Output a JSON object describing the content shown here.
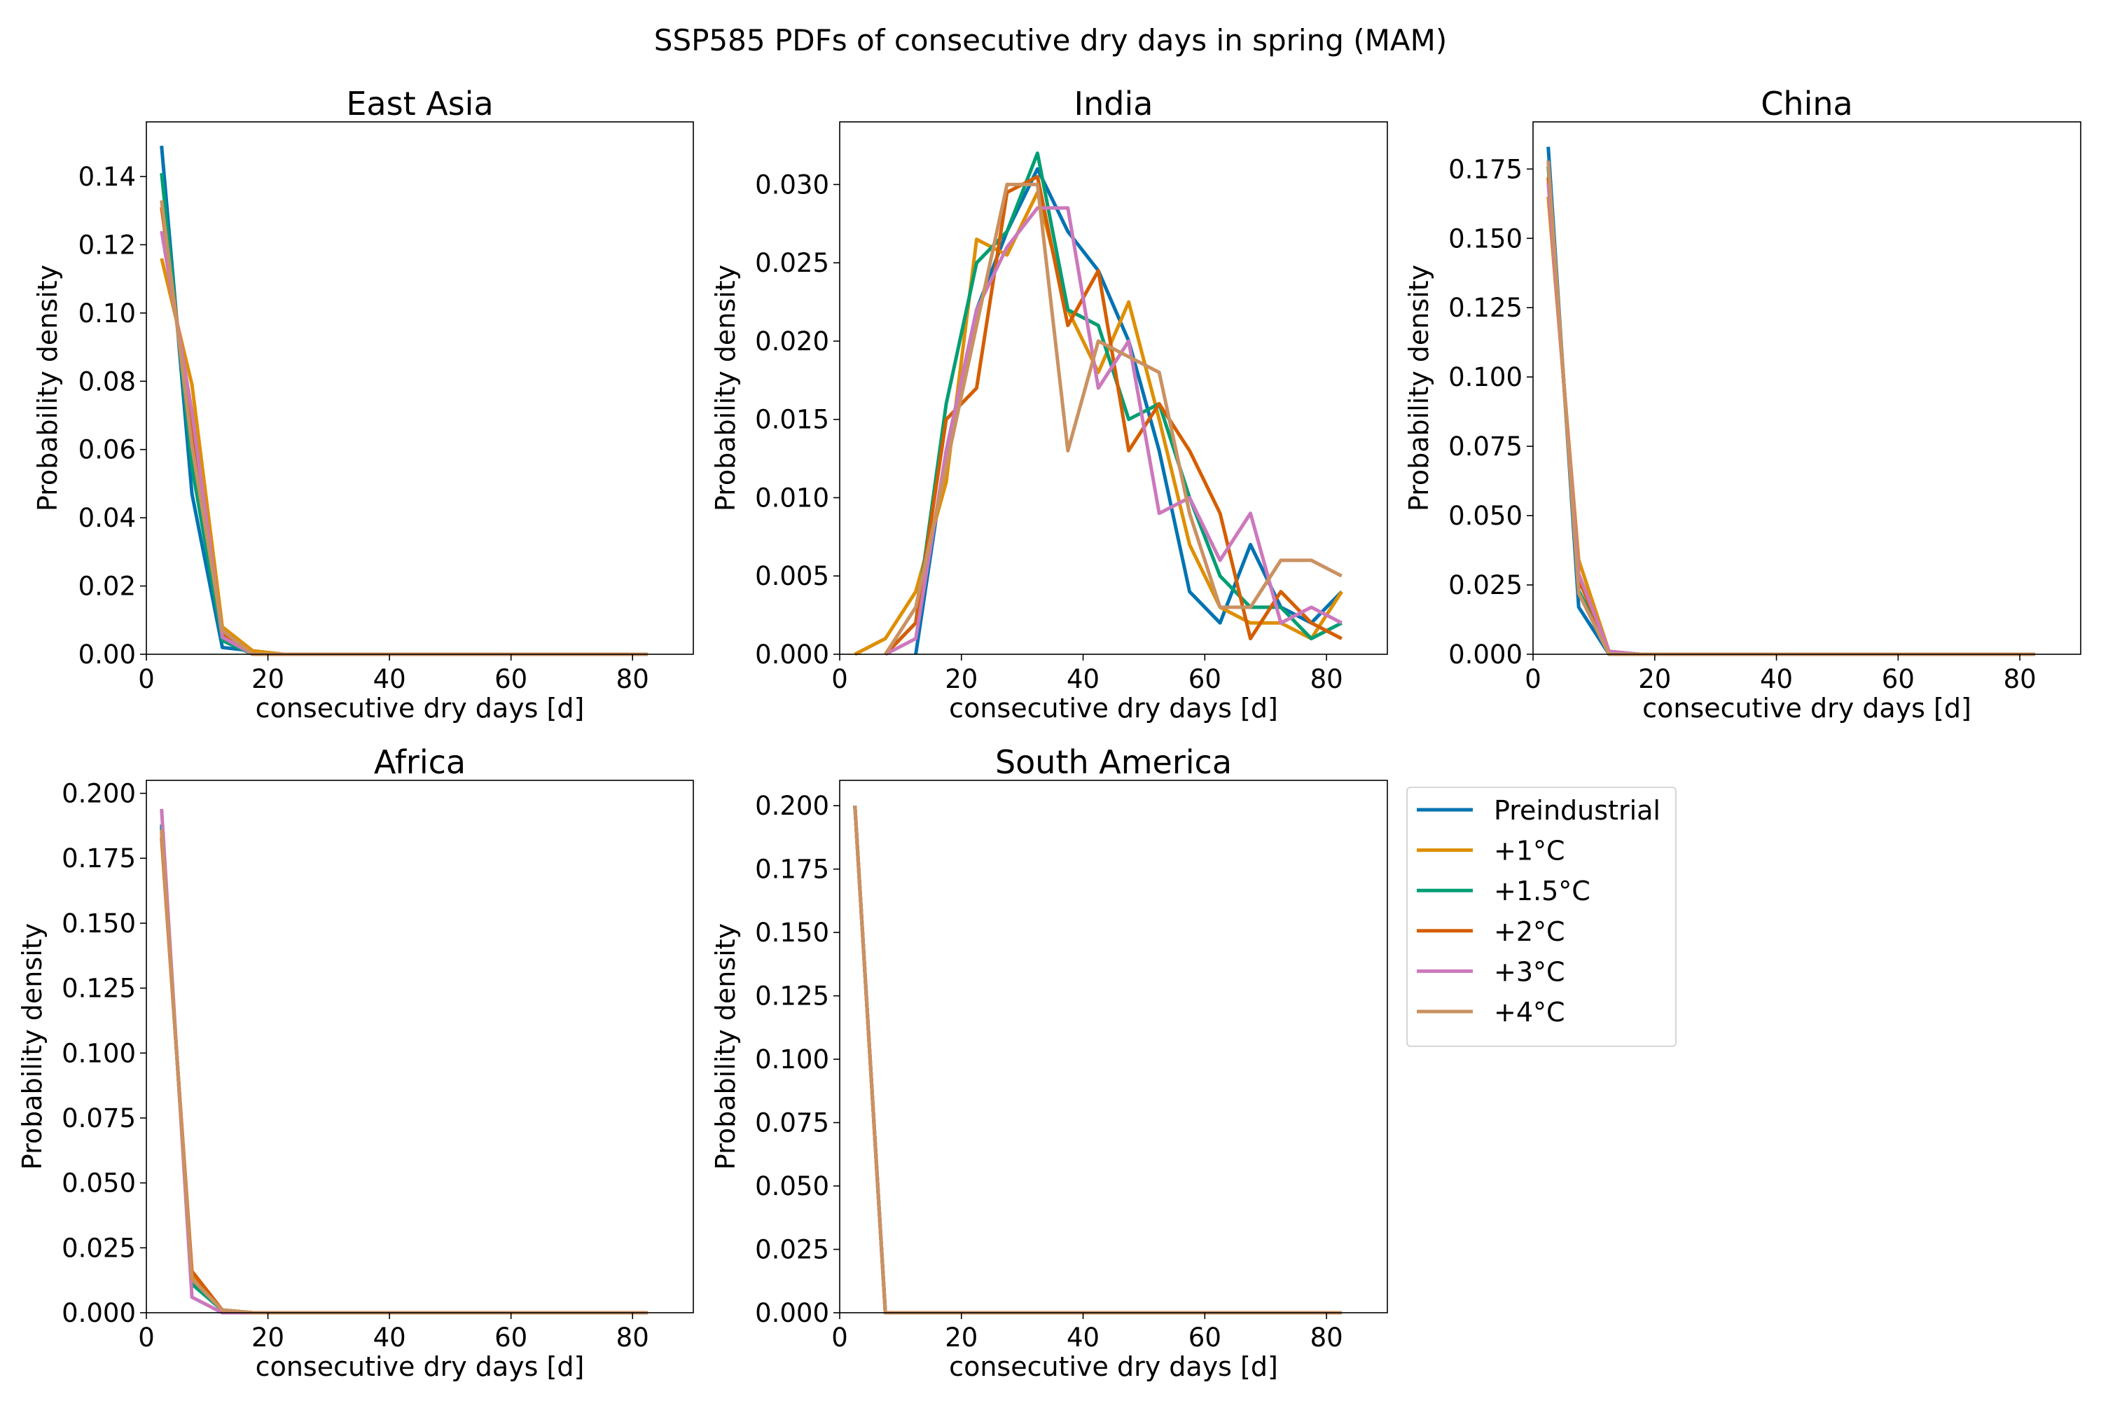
{
  "figure": {
    "title": "SSP585 PDFs of consecutive dry days in spring (MAM)"
  },
  "legend": {
    "placement": "right of South America panel",
    "entries": [
      {
        "label": "Preindustrial",
        "color": "#0173b2"
      },
      {
        "label": "+1°C",
        "color": "#de8f05"
      },
      {
        "label": "+1.5°C",
        "color": "#029e73"
      },
      {
        "label": "+2°C",
        "color": "#d55e00"
      },
      {
        "label": "+3°C",
        "color": "#cc78bc"
      },
      {
        "label": "+4°C",
        "color": "#ca9161"
      }
    ]
  },
  "chart_data": [
    {
      "type": "line",
      "title": "East Asia",
      "xlabel": "consecutive dry days [d]",
      "ylabel": "Probability density",
      "xlim": [
        0,
        90
      ],
      "ylim": [
        0,
        0.156
      ],
      "xticks": [
        "0",
        "20",
        "40",
        "60",
        "80"
      ],
      "yticks": [
        "0.00",
        "0.02",
        "0.04",
        "0.06",
        "0.08",
        "0.10",
        "0.12",
        "0.14"
      ],
      "x": [
        2.5,
        7.5,
        12.5,
        17.5,
        22.5,
        27.5,
        32.5,
        37.5,
        42.5,
        47.5,
        52.5,
        57.5,
        62.5,
        67.5,
        72.5,
        77.5,
        82.5
      ],
      "series": [
        {
          "name": "Preindustrial",
          "values": [
            0.149,
            0.047,
            0.002,
            0.001,
            0,
            0,
            0,
            0,
            0,
            0,
            0,
            0,
            0,
            0,
            0,
            0,
            0
          ]
        },
        {
          "name": "+1°C",
          "values": [
            0.116,
            0.079,
            0.008,
            0.001,
            0,
            0,
            0,
            0,
            0,
            0,
            0,
            0,
            0,
            0,
            0,
            0,
            0
          ]
        },
        {
          "name": "+1.5°C",
          "values": [
            0.141,
            0.055,
            0.004,
            0,
            0,
            0,
            0,
            0,
            0,
            0,
            0,
            0,
            0,
            0,
            0,
            0,
            0
          ]
        },
        {
          "name": "+2°C",
          "values": [
            0.131,
            0.065,
            0.006,
            0,
            0,
            0,
            0,
            0,
            0,
            0,
            0,
            0,
            0,
            0,
            0,
            0,
            0
          ]
        },
        {
          "name": "+3°C",
          "values": [
            0.124,
            0.071,
            0.005,
            0,
            0,
            0,
            0,
            0,
            0,
            0,
            0,
            0,
            0,
            0,
            0,
            0,
            0
          ]
        },
        {
          "name": "+4°C",
          "values": [
            0.133,
            0.061,
            0.007,
            0,
            0,
            0,
            0,
            0,
            0,
            0,
            0,
            0,
            0,
            0,
            0,
            0,
            0
          ]
        }
      ]
    },
    {
      "type": "line",
      "title": "India",
      "xlabel": "consecutive dry days [d]",
      "ylabel": "Probability density",
      "xlim": [
        0,
        90
      ],
      "ylim": [
        0,
        0.034
      ],
      "xticks": [
        "0",
        "20",
        "40",
        "60",
        "80"
      ],
      "yticks": [
        "0.000",
        "0.005",
        "0.010",
        "0.015",
        "0.020",
        "0.025",
        "0.030"
      ],
      "x": [
        2.5,
        7.5,
        12.5,
        17.5,
        22.5,
        27.5,
        32.5,
        37.5,
        42.5,
        47.5,
        52.5,
        57.5,
        62.5,
        67.5,
        72.5,
        77.5,
        82.5
      ],
      "series": [
        {
          "name": "Preindustrial",
          "values": [
            null,
            null,
            0.0,
            0.013,
            0.022,
            0.027,
            0.031,
            0.027,
            0.0245,
            0.02,
            0.013,
            0.004,
            0.002,
            0.007,
            0.003,
            0.002,
            0.004
          ]
        },
        {
          "name": "+1°C",
          "values": [
            0.0,
            0.001,
            0.004,
            0.011,
            0.0265,
            0.0255,
            0.0295,
            0.022,
            0.018,
            0.0225,
            0.015,
            0.007,
            0.003,
            0.002,
            0.002,
            0.001,
            0.004
          ]
        },
        {
          "name": "+1.5°C",
          "values": [
            null,
            0.0,
            0.002,
            0.016,
            0.025,
            0.027,
            0.032,
            0.022,
            0.021,
            0.015,
            0.016,
            0.01,
            0.005,
            0.003,
            0.003,
            0.001,
            0.002
          ]
        },
        {
          "name": "+2°C",
          "values": [
            null,
            0.0,
            0.002,
            0.015,
            0.017,
            0.0295,
            0.0305,
            0.021,
            0.0245,
            0.013,
            0.016,
            0.013,
            0.009,
            0.001,
            0.004,
            0.002,
            0.001
          ]
        },
        {
          "name": "+3°C",
          "values": [
            null,
            0.0,
            0.001,
            0.013,
            0.022,
            0.026,
            0.0285,
            0.0285,
            0.017,
            0.02,
            0.009,
            0.01,
            0.006,
            0.009,
            0.002,
            0.003,
            0.002
          ]
        },
        {
          "name": "+4°C",
          "values": [
            null,
            0.0,
            0.003,
            0.012,
            0.021,
            0.03,
            0.03,
            0.013,
            0.02,
            0.019,
            0.018,
            0.009,
            0.003,
            0.003,
            0.006,
            0.006,
            0.005
          ]
        }
      ]
    },
    {
      "type": "line",
      "title": "China",
      "xlabel": "consecutive dry days [d]",
      "ylabel": "Probability density",
      "xlim": [
        0,
        90
      ],
      "ylim": [
        0,
        0.192
      ],
      "xticks": [
        "0",
        "20",
        "40",
        "60",
        "80"
      ],
      "yticks": [
        "0.000",
        "0.025",
        "0.050",
        "0.075",
        "0.100",
        "0.125",
        "0.150",
        "0.175"
      ],
      "x": [
        2.5,
        7.5,
        12.5,
        17.5,
        22.5,
        27.5,
        32.5,
        37.5,
        42.5,
        47.5,
        52.5,
        57.5,
        62.5,
        67.5,
        72.5,
        77.5,
        82.5
      ],
      "series": [
        {
          "name": "Preindustrial",
          "values": [
            0.183,
            0.017,
            0.0,
            0,
            0,
            0,
            0,
            0,
            0,
            0,
            0,
            0,
            0,
            0,
            0,
            0,
            0
          ]
        },
        {
          "name": "+1°C",
          "values": [
            0.165,
            0.034,
            0.001,
            0,
            0,
            0,
            0,
            0,
            0,
            0,
            0,
            0,
            0,
            0,
            0,
            0,
            0
          ]
        },
        {
          "name": "+1.5°C",
          "values": [
            0.176,
            0.023,
            0.001,
            0,
            0,
            0,
            0,
            0,
            0,
            0,
            0,
            0,
            0,
            0,
            0,
            0,
            0
          ]
        },
        {
          "name": "+2°C",
          "values": [
            0.172,
            0.027,
            0.001,
            0,
            0,
            0,
            0,
            0,
            0,
            0,
            0,
            0,
            0,
            0,
            0,
            0,
            0
          ]
        },
        {
          "name": "+3°C",
          "values": [
            0.17,
            0.029,
            0.001,
            0,
            0,
            0,
            0,
            0,
            0,
            0,
            0,
            0,
            0,
            0,
            0,
            0,
            0
          ]
        },
        {
          "name": "+4°C",
          "values": [
            0.178,
            0.022,
            0.0,
            0,
            0,
            0,
            0,
            0,
            0,
            0,
            0,
            0,
            0,
            0,
            0,
            0,
            0
          ]
        }
      ]
    },
    {
      "type": "line",
      "title": "Africa",
      "xlabel": "consecutive dry days [d]",
      "ylabel": "Probability density",
      "xlim": [
        0,
        90
      ],
      "ylim": [
        0,
        0.205
      ],
      "xticks": [
        "0",
        "20",
        "40",
        "60",
        "80"
      ],
      "yticks": [
        "0.000",
        "0.025",
        "0.050",
        "0.075",
        "0.100",
        "0.125",
        "0.150",
        "0.175",
        "0.200"
      ],
      "x": [
        2.5,
        7.5,
        12.5,
        17.5,
        22.5,
        27.5,
        32.5,
        37.5,
        42.5,
        47.5,
        52.5,
        57.5,
        62.5,
        67.5,
        72.5,
        77.5,
        82.5
      ],
      "series": [
        {
          "name": "Preindustrial",
          "values": [
            0.187,
            0.012,
            0.001,
            0,
            0,
            0,
            0,
            0,
            0,
            0,
            0,
            0,
            0,
            0,
            0,
            0,
            0
          ]
        },
        {
          "name": "+1°C",
          "values": [
            0.185,
            0.014,
            0.001,
            0,
            0,
            0,
            0,
            0,
            0,
            0,
            0,
            0,
            0,
            0,
            0,
            0,
            0
          ]
        },
        {
          "name": "+1.5°C",
          "values": [
            0.188,
            0.011,
            0.001,
            0,
            0,
            0,
            0,
            0,
            0,
            0,
            0,
            0,
            0,
            0,
            0,
            0,
            0
          ]
        },
        {
          "name": "+2°C",
          "values": [
            0.183,
            0.016,
            0.001,
            0,
            0,
            0,
            0,
            0,
            0,
            0,
            0,
            0,
            0,
            0,
            0,
            0,
            0
          ]
        },
        {
          "name": "+3°C",
          "values": [
            0.194,
            0.006,
            0.0,
            0,
            0,
            0,
            0,
            0,
            0,
            0,
            0,
            0,
            0,
            0,
            0,
            0,
            0
          ]
        },
        {
          "name": "+4°C",
          "values": [
            0.186,
            0.013,
            0.001,
            0,
            0,
            0,
            0,
            0,
            0,
            0,
            0,
            0,
            0,
            0,
            0,
            0,
            0
          ]
        }
      ]
    },
    {
      "type": "line",
      "title": "South America",
      "xlabel": "consecutive dry days [d]",
      "ylabel": "Probability density",
      "xlim": [
        0,
        90
      ],
      "ylim": [
        0,
        0.21
      ],
      "xticks": [
        "0",
        "20",
        "40",
        "60",
        "80"
      ],
      "yticks": [
        "0.000",
        "0.025",
        "0.050",
        "0.075",
        "0.100",
        "0.125",
        "0.150",
        "0.175",
        "0.200"
      ],
      "x": [
        2.5,
        7.5,
        12.5,
        17.5,
        22.5,
        27.5,
        32.5,
        37.5,
        42.5,
        47.5,
        52.5,
        57.5,
        62.5,
        67.5,
        72.5,
        77.5,
        82.5
      ],
      "series": [
        {
          "name": "Preindustrial",
          "values": [
            0.2,
            0.0,
            0,
            0,
            0,
            0,
            0,
            0,
            0,
            0,
            0,
            0,
            0,
            0,
            0,
            0,
            0
          ]
        },
        {
          "name": "+1°C",
          "values": [
            0.2,
            0.0,
            0,
            0,
            0,
            0,
            0,
            0,
            0,
            0,
            0,
            0,
            0,
            0,
            0,
            0,
            0
          ]
        },
        {
          "name": "+1.5°C",
          "values": [
            0.2,
            0.0,
            0,
            0,
            0,
            0,
            0,
            0,
            0,
            0,
            0,
            0,
            0,
            0,
            0,
            0,
            0
          ]
        },
        {
          "name": "+2°C",
          "values": [
            0.2,
            0.0,
            0,
            0,
            0,
            0,
            0,
            0,
            0,
            0,
            0,
            0,
            0,
            0,
            0,
            0,
            0
          ]
        },
        {
          "name": "+3°C",
          "values": [
            0.2,
            0.0,
            0,
            0,
            0,
            0,
            0,
            0,
            0,
            0,
            0,
            0,
            0,
            0,
            0,
            0,
            0
          ]
        },
        {
          "name": "+4°C",
          "values": [
            0.2,
            0.0,
            0,
            0,
            0,
            0,
            0,
            0,
            0,
            0,
            0,
            0,
            0,
            0,
            0,
            0,
            0
          ]
        }
      ]
    }
  ]
}
